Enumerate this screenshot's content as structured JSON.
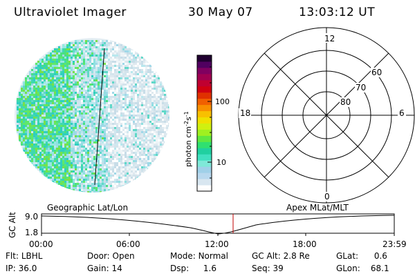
{
  "header": {
    "title": "Ultraviolet Imager",
    "date": "30 May 07",
    "time": "13:03:12 UT"
  },
  "colorbar": {
    "unit_label": "photon cm",
    "unit_exp1": "-2",
    "unit_s": "s",
    "unit_exp2": "-1",
    "tick_100": "100",
    "tick_10": "10",
    "colors": [
      "#ffffff",
      "#d8e6f0",
      "#b8d8ee",
      "#a0d0e8",
      "#7fe8d8",
      "#40e0c0",
      "#20d0a0",
      "#30e070",
      "#60e840",
      "#a0f020",
      "#d0f010",
      "#f0e000",
      "#f8c000",
      "#f89000",
      "#f06000",
      "#e03000",
      "#d00010",
      "#c00030",
      "#a00050",
      "#800060",
      "#500060",
      "#200030"
    ]
  },
  "polar": {
    "label_12": "12",
    "label_18": "18",
    "label_6": "6",
    "label_0": "0",
    "label_60": "60",
    "label_70": "70",
    "label_80": "80"
  },
  "altitude_plot": {
    "left_title": "Geographic Lat/Lon",
    "right_title": "Apex MLat/MLT",
    "axis_label": "GC Alt",
    "ytick_top": "9.0",
    "ytick_bottom": "1.8",
    "xticks": [
      "00:00",
      "06:00",
      "12:00",
      "18:00",
      "23:59"
    ]
  },
  "status": {
    "flt_label": "Flt:",
    "flt_value": "LBHL",
    "door_label": "Door:",
    "door_value": "Open",
    "mode_label": "Mode:",
    "mode_value": "Normal",
    "gcalt_label": "GC Alt:",
    "gcalt_value": "2.8 Re",
    "glat_label": "GLat:",
    "glat_value": "0.6",
    "ip_label": "IP:",
    "ip_value": "36.0",
    "gain_label": "Gain:",
    "gain_value": "14",
    "dsp_label": "Dsp:",
    "dsp_value": "1.6",
    "seq_label": "Seq:",
    "seq_value": "39",
    "glon_label": "GLon:",
    "glon_value": "68.1"
  }
}
